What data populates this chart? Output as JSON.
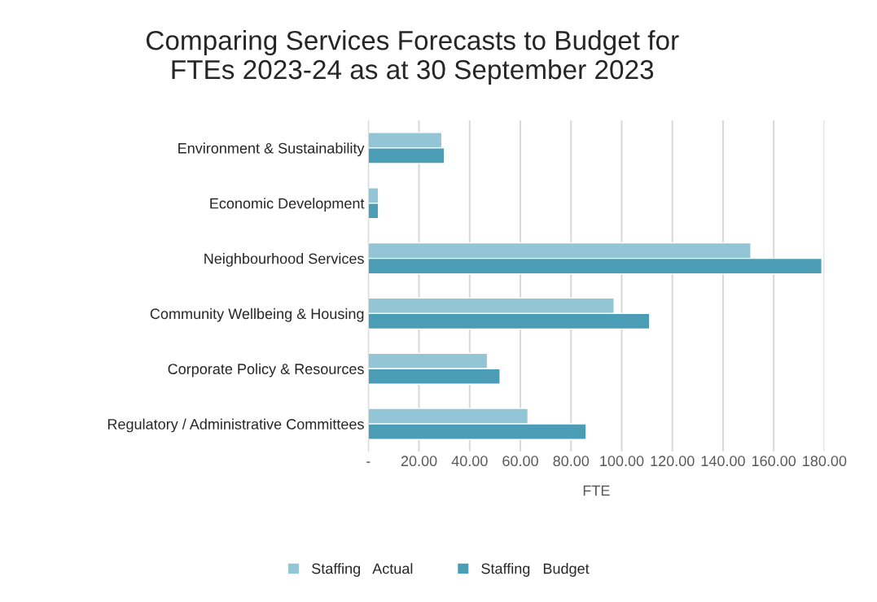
{
  "chart_data": {
    "type": "bar",
    "orientation": "horizontal",
    "title": "Comparing Services Forecasts to Budget for\nFTEs 2023-24 as at 30 September 2023",
    "xlabel": "FTE",
    "categories": [
      "Environment & Sustainability",
      "Economic Development",
      "Neighbourhood Services",
      "Community Wellbeing & Housing",
      "Corporate Policy & Resources",
      "Regulatory / Administrative Committees"
    ],
    "series": [
      {
        "name": "Staffing   Actual",
        "color": "#92c5d6",
        "values": [
          29,
          4,
          151,
          97,
          47,
          63
        ]
      },
      {
        "name": "Staffing   Budget",
        "color": "#4a9db5",
        "values": [
          30,
          4,
          179,
          111,
          52,
          86
        ]
      }
    ],
    "xlim": [
      0,
      180
    ],
    "xticks": [
      {
        "value": 0,
        "label": "-"
      },
      {
        "value": 20,
        "label": "20.00"
      },
      {
        "value": 40,
        "label": "40.00"
      },
      {
        "value": 60,
        "label": "60.00"
      },
      {
        "value": 80,
        "label": "80.00"
      },
      {
        "value": 100,
        "label": "100.00"
      },
      {
        "value": 120,
        "label": "120.00"
      },
      {
        "value": 140,
        "label": "140.00"
      },
      {
        "value": 160,
        "label": "160.00"
      },
      {
        "value": 180,
        "label": "180.00"
      }
    ],
    "grid": "x",
    "legend": "bottom"
  }
}
